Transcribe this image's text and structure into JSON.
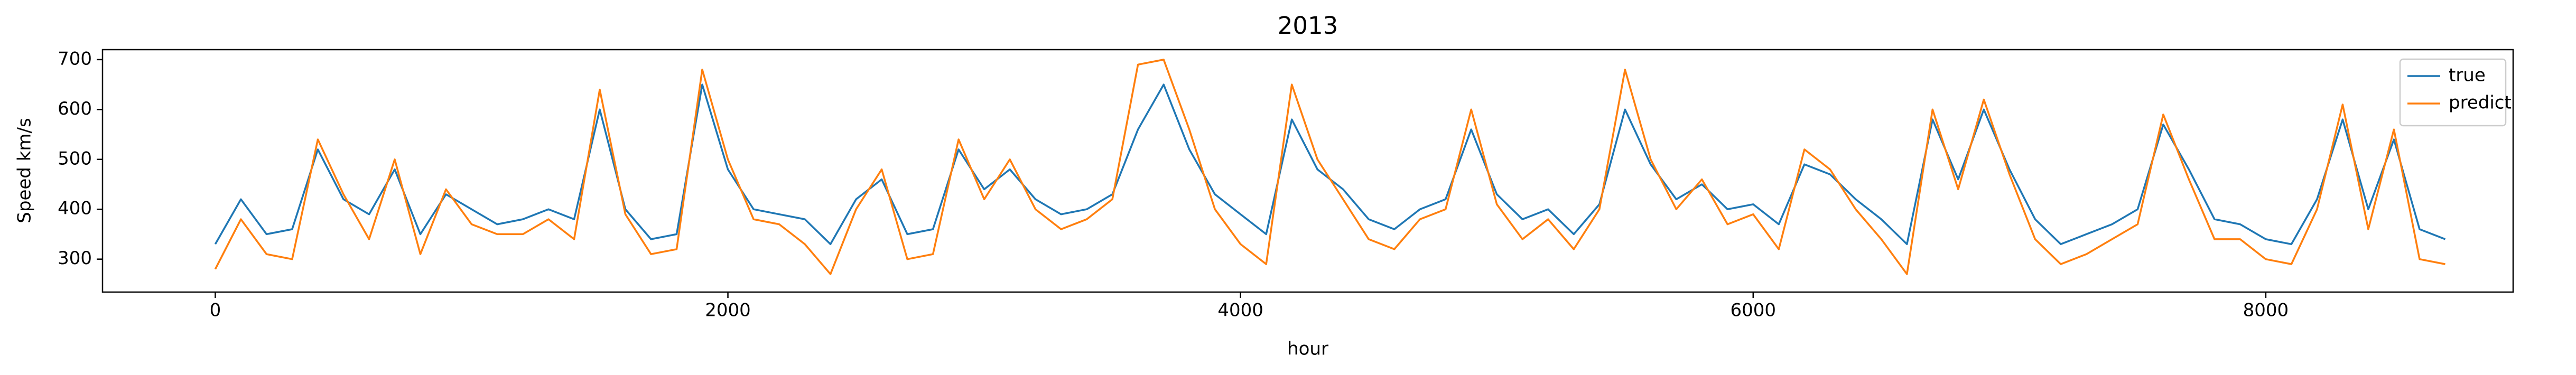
{
  "chart_data": {
    "type": "line",
    "title": "2013",
    "x_label": "hour",
    "y_label": "Speed km/s",
    "x": [
      0,
      100,
      200,
      300,
      400,
      500,
      600,
      700,
      800,
      900,
      1000,
      1100,
      1200,
      1300,
      1400,
      1500,
      1600,
      1700,
      1800,
      1900,
      2000,
      2100,
      2200,
      2300,
      2400,
      2500,
      2600,
      2700,
      2800,
      2900,
      3000,
      3100,
      3200,
      3300,
      3400,
      3500,
      3600,
      3700,
      3800,
      3900,
      4000,
      4100,
      4200,
      4300,
      4400,
      4500,
      4600,
      4700,
      4800,
      4900,
      5000,
      5100,
      5200,
      5300,
      5400,
      5500,
      5600,
      5700,
      5800,
      5900,
      6000,
      6100,
      6200,
      6300,
      6400,
      6500,
      6600,
      6700,
      6800,
      6900,
      7000,
      7100,
      7200,
      7300,
      7400,
      7500,
      7600,
      7700,
      7800,
      7900,
      8000,
      8100,
      8200,
      8300,
      8400,
      8500,
      8600,
      8700
    ],
    "series": [
      {
        "name": "true",
        "color": "#1f77b4",
        "values": [
          330,
          420,
          350,
          360,
          520,
          420,
          390,
          480,
          350,
          430,
          400,
          370,
          380,
          400,
          380,
          600,
          400,
          340,
          350,
          650,
          480,
          400,
          390,
          380,
          330,
          420,
          460,
          350,
          360,
          520,
          440,
          480,
          420,
          390,
          400,
          430,
          560,
          650,
          520,
          430,
          390,
          350,
          580,
          480,
          440,
          380,
          360,
          400,
          420,
          560,
          430,
          380,
          400,
          350,
          410,
          600,
          490,
          420,
          450,
          400,
          410,
          370,
          490,
          470,
          420,
          380,
          330,
          580,
          460,
          600,
          480,
          380,
          330,
          350,
          370,
          400,
          570,
          480,
          380,
          370,
          340,
          330,
          420,
          580,
          400,
          540,
          360,
          340
        ]
      },
      {
        "name": "predict",
        "color": "#ff7f0e",
        "values": [
          280,
          380,
          310,
          300,
          540,
          430,
          340,
          500,
          310,
          440,
          370,
          350,
          350,
          380,
          340,
          640,
          390,
          310,
          320,
          680,
          500,
          380,
          370,
          330,
          270,
          400,
          480,
          300,
          310,
          540,
          420,
          500,
          400,
          360,
          380,
          420,
          690,
          700,
          560,
          400,
          330,
          290,
          650,
          500,
          420,
          340,
          320,
          380,
          400,
          600,
          410,
          340,
          380,
          320,
          400,
          680,
          500,
          400,
          460,
          370,
          390,
          320,
          520,
          480,
          400,
          340,
          270,
          600,
          440,
          620,
          470,
          340,
          290,
          310,
          340,
          370,
          590,
          460,
          340,
          340,
          300,
          290,
          400,
          610,
          360,
          560,
          300,
          290
        ]
      }
    ],
    "xlim": [
      -440,
      8965
    ],
    "ylim": [
      234,
      720
    ],
    "xticks": [
      0,
      2000,
      4000,
      6000,
      8000
    ],
    "yticks": [
      300,
      400,
      500,
      600,
      700
    ],
    "grid": false,
    "legend": "upper right"
  }
}
